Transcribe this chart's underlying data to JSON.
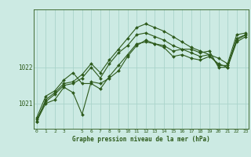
{
  "title": "Graphe pression niveau de la mer (hPa)",
  "background_color": "#cceae3",
  "line_color": "#2d5a1b",
  "grid_color": "#aad4cb",
  "x_ticks": [
    0,
    1,
    2,
    3,
    4,
    5,
    6,
    7,
    8,
    9,
    10,
    11,
    12,
    13,
    14,
    15,
    16,
    17,
    18,
    19,
    20,
    21,
    22,
    23
  ],
  "x_tick_labels": [
    "0",
    "1",
    "2",
    "3",
    "",
    "5",
    "6",
    "7",
    "8",
    "9",
    "10",
    "11",
    "12",
    "13",
    "14",
    "15",
    "16",
    "17",
    "18",
    "19",
    "20",
    "21",
    "22",
    "23"
  ],
  "yticks": [
    1021,
    1022
  ],
  "ylim": [
    1020.3,
    1023.6
  ],
  "xlim": [
    -0.3,
    23.3
  ],
  "series": [
    [
      1020.5,
      1021.1,
      1021.3,
      1021.55,
      1021.6,
      1021.8,
      1022.1,
      1021.85,
      1022.2,
      1022.5,
      1022.8,
      1023.1,
      1023.2,
      1023.1,
      1023.0,
      1022.85,
      1022.7,
      1022.55,
      1022.45,
      1022.35,
      1022.25,
      1022.1,
      1022.9,
      1022.95
    ],
    [
      1020.6,
      1021.2,
      1021.35,
      1021.65,
      1021.85,
      1021.55,
      1021.55,
      1021.4,
      1021.75,
      1022.05,
      1022.35,
      1022.65,
      1022.7,
      1022.65,
      1022.6,
      1022.45,
      1022.5,
      1022.5,
      1022.4,
      1022.45,
      1022.0,
      1022.0,
      1022.8,
      1022.9
    ],
    [
      1020.5,
      1021.0,
      1021.1,
      1021.45,
      1021.3,
      1020.7,
      1021.6,
      1021.55,
      1021.7,
      1021.9,
      1022.3,
      1022.6,
      1022.75,
      1022.65,
      1022.55,
      1022.3,
      1022.35,
      1022.25,
      1022.2,
      1022.3,
      1022.1,
      1022.0,
      1022.7,
      1022.85
    ],
    [
      1020.55,
      1021.05,
      1021.25,
      1021.5,
      1021.55,
      1021.7,
      1022.0,
      1021.7,
      1022.1,
      1022.4,
      1022.6,
      1022.9,
      1022.95,
      1022.85,
      1022.75,
      1022.6,
      1022.5,
      1022.4,
      1022.3,
      1022.35,
      1022.05,
      1022.05,
      1022.75,
      1022.9
    ]
  ],
  "figsize": [
    3.2,
    2.0
  ],
  "dpi": 100
}
